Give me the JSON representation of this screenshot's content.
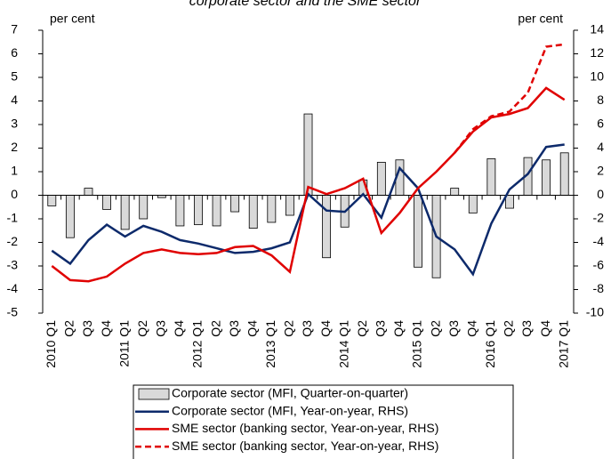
{
  "chart_data": {
    "type": "combo",
    "title": "corporate sector and the SME sector",
    "y_label": "per cent",
    "y2_label": "per cent",
    "categories": [
      "2010 Q1",
      "Q2",
      "Q3",
      "Q4",
      "2011 Q1",
      "Q2",
      "Q3",
      "Q4",
      "2012 Q1",
      "Q2",
      "Q3",
      "Q4",
      "2013 Q1",
      "Q2",
      "Q3",
      "Q4",
      "2014 Q1",
      "Q2",
      "Q3",
      "Q4",
      "2015 Q1",
      "Q2",
      "Q3",
      "Q4",
      "2016 Q1",
      "Q2",
      "Q3",
      "Q4",
      "2017 Q1"
    ],
    "ylim": [
      -5,
      7
    ],
    "yticks": [
      -5,
      -4,
      -3,
      -2,
      -1,
      0,
      1,
      2,
      3,
      4,
      5,
      6,
      7
    ],
    "y2lim": [
      -10,
      14
    ],
    "y2ticks": [
      -10,
      -8,
      -6,
      -4,
      -2,
      0,
      2,
      4,
      6,
      8,
      10,
      12,
      14
    ],
    "series": [
      {
        "name": "Corporate sector (MFI, Quarter-on-quarter)",
        "type": "bar",
        "color": "#d9d9d9",
        "values": [
          -0.45,
          -1.8,
          0.3,
          -0.6,
          -1.45,
          -1.0,
          -0.1,
          -1.3,
          -1.25,
          -1.3,
          -0.7,
          -1.4,
          -1.15,
          -0.85,
          3.45,
          -2.65,
          -1.35,
          0.65,
          1.4,
          1.5,
          -3.05,
          -3.5,
          0.3,
          -0.75,
          1.55,
          -0.55,
          1.6,
          1.5,
          1.8
        ]
      },
      {
        "name": "Corporate sector (MFI, Year-on-year, RHS)",
        "type": "line",
        "axis": "y2",
        "color": "#0d2a6b",
        "dashed": false,
        "values": [
          -4.7,
          -5.8,
          -3.8,
          -2.5,
          -3.5,
          -2.6,
          -3.1,
          -3.8,
          -4.1,
          -4.5,
          -4.9,
          -4.8,
          -4.5,
          -4.0,
          0.1,
          -1.3,
          -1.4,
          0.1,
          -1.9,
          2.3,
          0.6,
          -3.5,
          -4.6,
          -6.7,
          -2.4,
          0.5,
          1.8,
          4.1,
          4.3
        ]
      },
      {
        "name": "SME sector (banking sector, Year-on-year, RHS)",
        "type": "line",
        "axis": "y2",
        "color": "#e00000",
        "dashed": false,
        "values": [
          -6.0,
          -7.2,
          -7.3,
          -6.9,
          -5.8,
          -4.9,
          -4.6,
          -4.9,
          -5.0,
          -4.9,
          -4.4,
          -4.3,
          -5.1,
          -6.5,
          0.7,
          0.1,
          0.6,
          1.4,
          -3.2,
          -1.5,
          0.6,
          2.0,
          3.6,
          5.4,
          6.6,
          6.9,
          7.4,
          9.1,
          8.1
        ]
      },
      {
        "name": "SME sector (banking sector, Year-on-year, RHS)",
        "type": "line",
        "axis": "y2",
        "color": "#e00000",
        "dashed": true,
        "values": [
          null,
          null,
          null,
          null,
          null,
          null,
          null,
          null,
          null,
          null,
          null,
          null,
          null,
          null,
          null,
          null,
          null,
          null,
          null,
          null,
          null,
          null,
          3.6,
          5.6,
          6.7,
          7.1,
          8.7,
          12.6,
          12.8
        ]
      }
    ]
  }
}
